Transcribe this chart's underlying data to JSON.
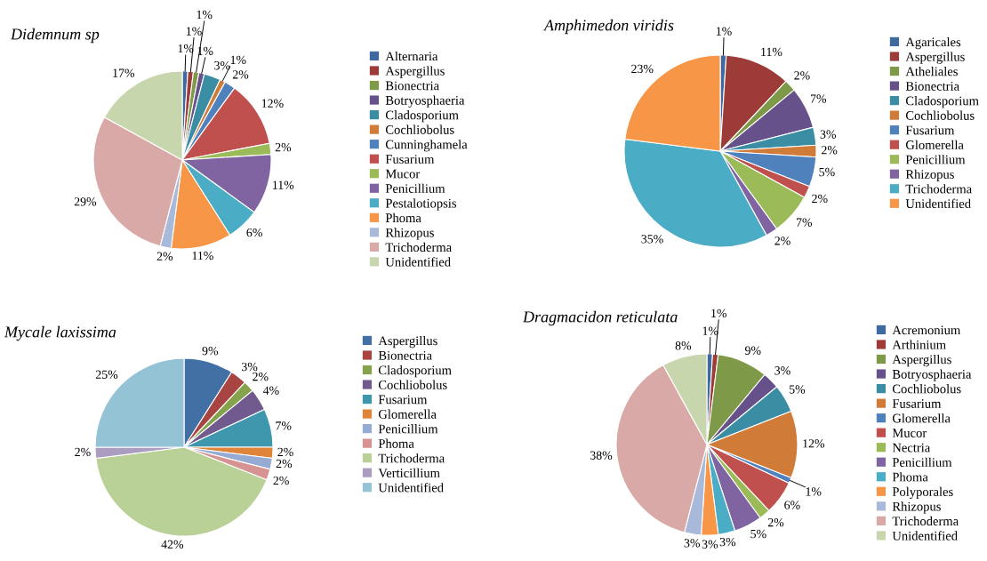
{
  "chart_data": [
    {
      "type": "pie",
      "title": "Didemnum sp",
      "legend": "right",
      "categories": [
        "Alternaria",
        "Aspergillus",
        "Bionectria",
        "Botryosphaeria",
        "Cladosporium",
        "Cochliobolus",
        "Cunninghamela",
        "Fusarium",
        "Mucor",
        "Penicillium",
        "Pestalotiopsis",
        "Phoma",
        "Rhizopus",
        "Trichoderma",
        "Unidentified"
      ],
      "values": [
        1,
        1,
        1,
        1,
        3,
        1,
        2,
        12,
        2,
        11,
        6,
        11,
        2,
        29,
        17
      ],
      "value_labels": [
        "1%",
        "1%",
        "1%",
        "1%",
        "3%",
        "1%",
        "2%",
        "12%",
        "2%",
        "11%",
        "6%",
        "11%",
        "2%",
        "29%",
        "17%"
      ],
      "colors": [
        "#3f6aa0",
        "#9c3b38",
        "#7e9a48",
        "#67518a",
        "#3a8da3",
        "#d07b38",
        "#4f81bd",
        "#c0504d",
        "#9bbb59",
        "#8064a2",
        "#4bacc6",
        "#f79646",
        "#a9b9d9",
        "#d9a9a8",
        "#c7d6ac"
      ]
    },
    {
      "type": "pie",
      "title": "Amphimedon viridis",
      "legend": "right",
      "categories": [
        "Agaricales",
        "Aspergillus",
        "Atheliales",
        "Bionectria",
        "Cladosporium",
        "Cochliobolus",
        "Fusarium",
        "Glomerella",
        "Penicillium",
        "Rhizopus",
        "Trichoderma",
        "Unidentified"
      ],
      "values": [
        1,
        11,
        2,
        7,
        3,
        2,
        5,
        2,
        7,
        2,
        35,
        23
      ],
      "value_labels": [
        "1%",
        "11%",
        "2%",
        "7%",
        "3%",
        "2%",
        "5%",
        "2%",
        "7%",
        "2%",
        "35%",
        "23%"
      ],
      "colors": [
        "#3f6aa0",
        "#9c3b38",
        "#7e9a48",
        "#67518a",
        "#3a8da3",
        "#d07b38",
        "#4f81bd",
        "#c0504d",
        "#9bbb59",
        "#8064a2",
        "#4bacc6",
        "#f79646"
      ]
    },
    {
      "type": "pie",
      "title": "Mycale laxissima",
      "legend": "right",
      "categories": [
        "Aspergillus",
        "Bionectria",
        "Cladosporium",
        "Cochliobolus",
        "Fusarium",
        "Glomerella",
        "Penicillium",
        "Phoma",
        "Trichoderma",
        "Verticillium",
        "Unidentified"
      ],
      "values": [
        9,
        3,
        2,
        4,
        7,
        2,
        2,
        2,
        42,
        2,
        25
      ],
      "value_labels": [
        "9%",
        "3%",
        "2%",
        "4%",
        "7%",
        "2%",
        "2%",
        "2%",
        "42%",
        "2%",
        "25%"
      ],
      "colors": [
        "#4270a4",
        "#a84543",
        "#85a24d",
        "#715a8e",
        "#3f97ae",
        "#e0843a",
        "#95abd3",
        "#d69392",
        "#b9d097",
        "#aa9dc0",
        "#93c3d5"
      ]
    },
    {
      "type": "pie",
      "title": "Dragmacidon reticulata",
      "legend": "right",
      "categories": [
        "Acremonium",
        "Arthinium",
        "Aspergillus",
        "Botryosphaeria",
        "Cochliobolus",
        "Fusarium",
        "Glomerella",
        "Mucor",
        "Nectria",
        "Penicillium",
        "Phoma",
        "Polyporales",
        "Rhizopus",
        "Trichoderma",
        "Unidentified"
      ],
      "values": [
        1,
        1,
        9,
        3,
        5,
        12,
        1,
        6,
        2,
        5,
        3,
        3,
        3,
        38,
        8
      ],
      "value_labels": [
        "1%",
        "1%",
        "9%",
        "3%",
        "5%",
        "12%",
        "1%",
        "6%",
        "2%",
        "5%",
        "3%",
        "3%",
        "3%",
        "38%",
        "8%"
      ],
      "colors": [
        "#3f6aa0",
        "#9c3b38",
        "#7e9a48",
        "#67518a",
        "#3a8da3",
        "#d07b38",
        "#4f81bd",
        "#c0504d",
        "#9bbb59",
        "#8064a2",
        "#4bacc6",
        "#f79646",
        "#a9b9d9",
        "#d9a9a8",
        "#c7d6ac"
      ]
    }
  ]
}
